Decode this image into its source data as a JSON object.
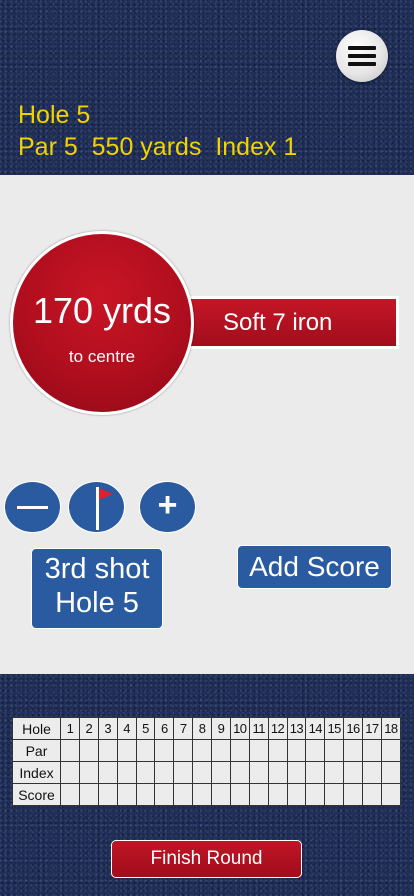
{
  "header": {
    "hole_title": "Hole 5",
    "hole_info": "Par 5  550 yards  Index 1",
    "menu_icon": "hamburger-menu-icon"
  },
  "distance": {
    "value": "170 yrds",
    "subtitle": "to centre",
    "club": "Soft 7 iron"
  },
  "controls": {
    "decrease_icon": "minus-icon",
    "flag_icon": "flag-icon",
    "increase_icon": "plus-icon",
    "plus_glyph": "+",
    "shot_line1": "3rd shot",
    "shot_line2": "Hole 5",
    "add_score": "Add Score"
  },
  "scorecard": {
    "rows": [
      "Hole",
      "Par",
      "Index",
      "Score"
    ],
    "holes": [
      "1",
      "2",
      "3",
      "4",
      "5",
      "6",
      "7",
      "8",
      "9",
      "10",
      "11",
      "12",
      "13",
      "14",
      "15",
      "16",
      "17",
      "18"
    ]
  },
  "footer": {
    "finish_label": "Finish Round"
  },
  "colors": {
    "navy_background": "#1f2f5a",
    "header_text": "#f2d200",
    "accent_red": "#b00e1e",
    "button_blue": "#2a5aa0",
    "content_background": "#ebebeb"
  }
}
